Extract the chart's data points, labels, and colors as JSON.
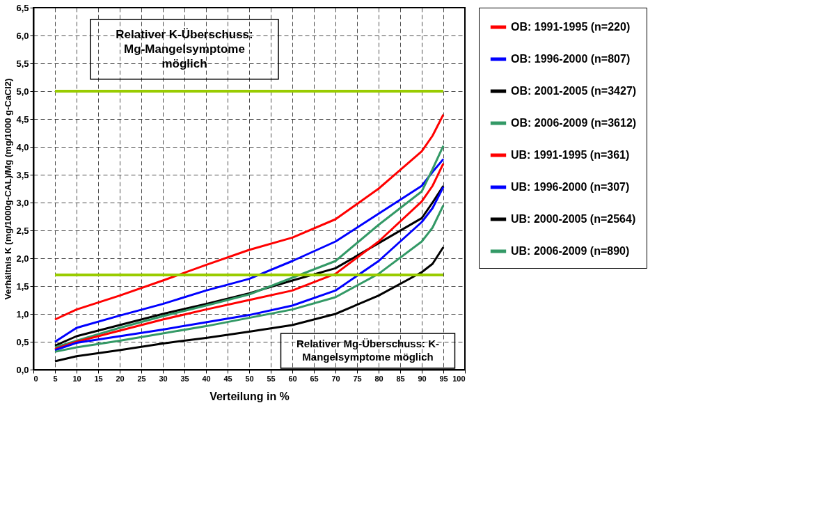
{
  "chart_data": {
    "type": "line",
    "xlabel": "Verteilung in %",
    "ylabel": "Verhältnis K (mg/1000g-CAL)/Mg (mg/1000 g-CaCl2)",
    "x": [
      5,
      10,
      20,
      30,
      40,
      50,
      60,
      70,
      80,
      90,
      92.5,
      95
    ],
    "series": [
      {
        "name": "OB: 1991-1995 (n=220)",
        "color": "#ff0000",
        "values": [
          0.9,
          1.08,
          1.33,
          1.6,
          1.88,
          2.15,
          2.37,
          2.7,
          3.25,
          3.92,
          4.2,
          4.58
        ]
      },
      {
        "name": "OB: 1996-2000 (n=807)",
        "color": "#0000ff",
        "values": [
          0.5,
          0.75,
          0.97,
          1.18,
          1.42,
          1.63,
          1.95,
          2.3,
          2.8,
          3.3,
          3.55,
          3.78
        ]
      },
      {
        "name": "OB: 2001-2005 (n=3427)",
        "color": "#000000",
        "values": [
          0.43,
          0.6,
          0.8,
          1.0,
          1.18,
          1.37,
          1.6,
          1.82,
          2.27,
          2.72,
          3.0,
          3.3
        ]
      },
      {
        "name": "OB: 2006-2009 (n=3612)",
        "color": "#339966",
        "values": [
          0.4,
          0.52,
          0.75,
          0.96,
          1.15,
          1.35,
          1.65,
          1.95,
          2.6,
          3.2,
          3.6,
          4.02
        ]
      },
      {
        "name": "UB: 1991-1995 (n=361)",
        "color": "#ff0000",
        "values": [
          0.37,
          0.5,
          0.7,
          0.9,
          1.08,
          1.25,
          1.42,
          1.72,
          2.3,
          3.02,
          3.3,
          3.7
        ]
      },
      {
        "name": "UB: 1996-2000 (n=307)",
        "color": "#0000ff",
        "values": [
          0.35,
          0.48,
          0.6,
          0.72,
          0.85,
          0.98,
          1.15,
          1.42,
          1.95,
          2.65,
          2.9,
          3.28
        ]
      },
      {
        "name": "UB: 2000-2005 (n=2564)",
        "color": "#000000",
        "values": [
          0.15,
          0.24,
          0.35,
          0.47,
          0.57,
          0.68,
          0.8,
          1.0,
          1.33,
          1.75,
          1.9,
          2.2
        ]
      },
      {
        "name": "UB: 2006-2009 (n=890)",
        "color": "#339966",
        "values": [
          0.32,
          0.4,
          0.52,
          0.65,
          0.78,
          0.93,
          1.08,
          1.3,
          1.72,
          2.3,
          2.55,
          2.95
        ]
      }
    ],
    "xlim": [
      0,
      100
    ],
    "xticks": [
      0,
      5,
      10,
      15,
      20,
      25,
      30,
      35,
      40,
      45,
      50,
      55,
      60,
      65,
      70,
      75,
      80,
      85,
      90,
      95,
      100
    ],
    "ylim": [
      0,
      6.5
    ],
    "yticks": [
      {
        "value": 0,
        "label": "0,0"
      },
      {
        "value": 0.5,
        "label": "0,5"
      },
      {
        "value": 1,
        "label": "1,0"
      },
      {
        "value": 1.5,
        "label": "1,5"
      },
      {
        "value": 2,
        "label": "2,0"
      },
      {
        "value": 2.5,
        "label": "2,5"
      },
      {
        "value": 3,
        "label": "3,0"
      },
      {
        "value": 3.5,
        "label": "3,5"
      },
      {
        "value": 4,
        "label": "4,0"
      },
      {
        "value": 4.5,
        "label": "4,5"
      },
      {
        "value": 5,
        "label": "5,0"
      },
      {
        "value": 5.5,
        "label": "5,5"
      },
      {
        "value": 6,
        "label": "6,0"
      },
      {
        "value": 6.5,
        "label": "6,5"
      }
    ],
    "ref_lines": [
      {
        "axis": "y",
        "value": 5,
        "color": "#99cc00"
      },
      {
        "axis": "y",
        "value": 1.7,
        "color": "#99cc00"
      }
    ],
    "annotations": [
      "Relativer K-Überschuss:\nMg-Mangelsymptome\nmöglich",
      "Relativer Mg-Überschuss: K-\nMangelsymptome möglich"
    ],
    "grid": true,
    "legend": "right",
    "line_style": "solid",
    "marker": "none"
  }
}
